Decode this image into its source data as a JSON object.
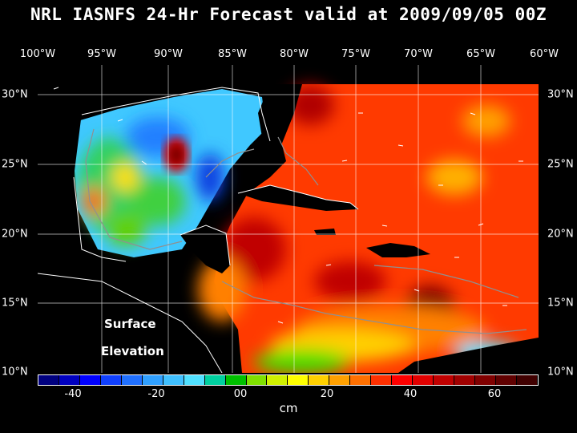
{
  "title": "NRL IASNFS  24-Hr Forecast valid at 2009/09/05 00Z",
  "lon_labels": [
    "100°W",
    "95°W",
    "90°W",
    "85°W",
    "80°W",
    "75°W",
    "70°W",
    "65°W",
    "60°W"
  ],
  "lat_labels": [
    "30°N",
    "25°N",
    "20°N",
    "15°N",
    "10°N"
  ],
  "field_label": {
    "line1": "Surface",
    "line2": "Elevation"
  },
  "colorbar": {
    "colors": [
      "#00007f",
      "#0000c0",
      "#0000ff",
      "#1040ff",
      "#2070ff",
      "#30a0ff",
      "#40c0ff",
      "#50e0ff",
      "#00d0a0",
      "#00c000",
      "#80e000",
      "#d0f000",
      "#ffff00",
      "#ffd000",
      "#ffa000",
      "#ff7000",
      "#ff3000",
      "#ff0000",
      "#e00000",
      "#c00000",
      "#a00000",
      "#800000",
      "#600000",
      "#400000"
    ],
    "tick_labels": [
      "-40",
      "-20",
      "00",
      "20",
      "40",
      "60"
    ],
    "unit": "cm"
  }
}
